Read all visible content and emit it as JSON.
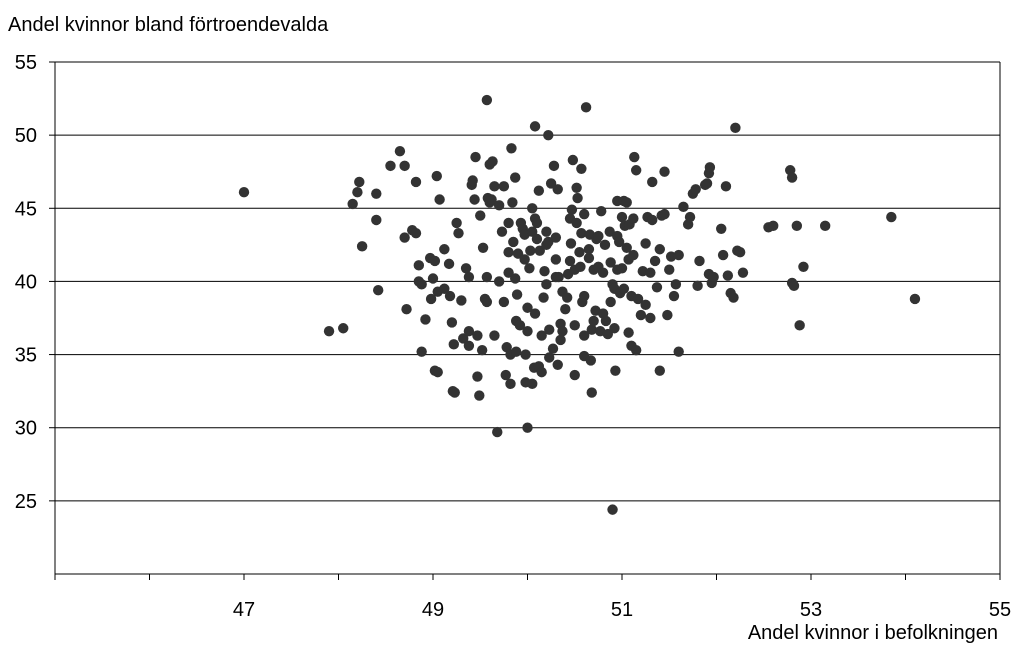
{
  "chart_data": {
    "type": "scatter",
    "title": "Andel kvinnor bland förtroendevalda",
    "xlabel": "Andel kvinnor i befolkningen",
    "ylabel": "",
    "xlim": [
      45,
      55
    ],
    "ylim": [
      20,
      55
    ],
    "xticks": [
      47,
      49,
      51,
      53,
      55
    ],
    "yticks": [
      25,
      30,
      35,
      40,
      45,
      50,
      55
    ],
    "grid": "horizontal",
    "marker_color": "#333333",
    "points": [
      [
        47.0,
        46.1
      ],
      [
        47.9,
        36.6
      ],
      [
        48.05,
        36.8
      ],
      [
        48.15,
        45.3
      ],
      [
        48.2,
        46.1
      ],
      [
        48.22,
        46.8
      ],
      [
        48.25,
        42.4
      ],
      [
        48.4,
        46.0
      ],
      [
        48.4,
        44.2
      ],
      [
        48.42,
        39.4
      ],
      [
        48.55,
        47.9
      ],
      [
        48.65,
        48.9
      ],
      [
        48.7,
        47.9
      ],
      [
        48.7,
        43.0
      ],
      [
        48.72,
        38.1
      ],
      [
        48.78,
        43.5
      ],
      [
        48.82,
        46.8
      ],
      [
        48.82,
        43.3
      ],
      [
        48.85,
        41.1
      ],
      [
        48.85,
        40.0
      ],
      [
        48.88,
        39.8
      ],
      [
        48.88,
        35.2
      ],
      [
        48.92,
        37.4
      ],
      [
        48.97,
        41.6
      ],
      [
        48.98,
        38.8
      ],
      [
        49.0,
        40.2
      ],
      [
        49.02,
        41.4
      ],
      [
        49.02,
        33.9
      ],
      [
        49.04,
        47.2
      ],
      [
        49.05,
        39.3
      ],
      [
        49.05,
        33.8
      ],
      [
        49.07,
        45.6
      ],
      [
        49.12,
        42.2
      ],
      [
        49.12,
        39.5
      ],
      [
        49.17,
        41.2
      ],
      [
        49.18,
        39.0
      ],
      [
        49.2,
        37.2
      ],
      [
        49.21,
        32.5
      ],
      [
        49.23,
        32.4
      ],
      [
        49.22,
        35.7
      ],
      [
        49.25,
        44.0
      ],
      [
        49.27,
        43.3
      ],
      [
        49.3,
        38.7
      ],
      [
        49.32,
        36.1
      ],
      [
        49.35,
        40.9
      ],
      [
        49.38,
        40.3
      ],
      [
        49.38,
        36.6
      ],
      [
        49.38,
        35.6
      ],
      [
        49.41,
        46.6
      ],
      [
        49.42,
        46.9
      ],
      [
        49.44,
        45.6
      ],
      [
        49.45,
        48.5
      ],
      [
        49.47,
        36.3
      ],
      [
        49.47,
        33.5
      ],
      [
        49.49,
        32.2
      ],
      [
        49.5,
        44.5
      ],
      [
        49.52,
        35.3
      ],
      [
        49.53,
        42.3
      ],
      [
        49.55,
        38.8
      ],
      [
        49.57,
        38.6
      ],
      [
        49.57,
        40.3
      ],
      [
        49.57,
        52.4
      ],
      [
        49.58,
        45.7
      ],
      [
        49.6,
        45.4
      ],
      [
        49.6,
        48.0
      ],
      [
        49.62,
        45.6
      ],
      [
        49.63,
        48.2
      ],
      [
        49.65,
        36.3
      ],
      [
        49.65,
        46.5
      ],
      [
        49.68,
        29.7
      ],
      [
        49.7,
        40.0
      ],
      [
        49.7,
        45.2
      ],
      [
        49.73,
        43.4
      ],
      [
        49.75,
        46.5
      ],
      [
        49.75,
        38.6
      ],
      [
        49.77,
        33.6
      ],
      [
        49.78,
        35.5
      ],
      [
        49.8,
        44.0
      ],
      [
        49.8,
        42.0
      ],
      [
        49.8,
        40.6
      ],
      [
        49.82,
        35.0
      ],
      [
        49.82,
        33.0
      ],
      [
        49.83,
        49.1
      ],
      [
        49.84,
        45.4
      ],
      [
        49.85,
        42.7
      ],
      [
        49.87,
        47.1
      ],
      [
        49.87,
        40.2
      ],
      [
        49.88,
        37.3
      ],
      [
        49.88,
        35.2
      ],
      [
        49.89,
        39.1
      ],
      [
        49.9,
        41.9
      ],
      [
        49.92,
        37.0
      ],
      [
        49.93,
        44.0
      ],
      [
        49.95,
        43.6
      ],
      [
        49.97,
        43.2
      ],
      [
        49.97,
        41.5
      ],
      [
        49.98,
        35.0
      ],
      [
        49.98,
        33.1
      ],
      [
        50.0,
        30.0
      ],
      [
        50.0,
        36.6
      ],
      [
        50.0,
        38.2
      ],
      [
        50.02,
        40.9
      ],
      [
        50.03,
        42.1
      ],
      [
        50.05,
        45.0
      ],
      [
        50.05,
        43.4
      ],
      [
        50.05,
        33.0
      ],
      [
        50.07,
        34.1
      ],
      [
        50.08,
        37.8
      ],
      [
        50.08,
        44.3
      ],
      [
        50.08,
        50.6
      ],
      [
        50.1,
        42.9
      ],
      [
        50.1,
        44.0
      ],
      [
        50.12,
        34.2
      ],
      [
        50.12,
        46.2
      ],
      [
        50.13,
        42.1
      ],
      [
        50.15,
        33.8
      ],
      [
        50.15,
        36.3
      ],
      [
        50.17,
        38.9
      ],
      [
        50.18,
        40.7
      ],
      [
        50.2,
        43.4
      ],
      [
        50.2,
        42.5
      ],
      [
        50.2,
        39.8
      ],
      [
        50.22,
        42.7
      ],
      [
        50.22,
        50.0
      ],
      [
        50.23,
        36.7
      ],
      [
        50.23,
        34.8
      ],
      [
        50.25,
        46.7
      ],
      [
        50.27,
        35.4
      ],
      [
        50.28,
        47.9
      ],
      [
        50.3,
        43.0
      ],
      [
        50.3,
        41.5
      ],
      [
        50.3,
        40.3
      ],
      [
        50.32,
        34.3
      ],
      [
        50.32,
        46.3
      ],
      [
        50.33,
        40.3
      ],
      [
        50.35,
        36.0
      ],
      [
        50.35,
        37.1
      ],
      [
        50.37,
        36.6
      ],
      [
        50.37,
        39.3
      ],
      [
        50.4,
        38.1
      ],
      [
        50.42,
        38.9
      ],
      [
        50.43,
        40.5
      ],
      [
        50.45,
        41.4
      ],
      [
        50.45,
        44.3
      ],
      [
        50.46,
        42.6
      ],
      [
        50.47,
        44.9
      ],
      [
        50.48,
        48.3
      ],
      [
        50.5,
        37.0
      ],
      [
        50.5,
        33.6
      ],
      [
        50.5,
        40.8
      ],
      [
        50.52,
        46.4
      ],
      [
        50.52,
        44.0
      ],
      [
        50.53,
        45.7
      ],
      [
        50.55,
        42.0
      ],
      [
        50.56,
        41.0
      ],
      [
        50.57,
        43.3
      ],
      [
        50.57,
        47.7
      ],
      [
        50.58,
        38.6
      ],
      [
        50.6,
        36.3
      ],
      [
        50.6,
        34.9
      ],
      [
        50.6,
        39.0
      ],
      [
        50.6,
        44.6
      ],
      [
        50.62,
        51.9
      ],
      [
        50.65,
        41.6
      ],
      [
        50.65,
        42.2
      ],
      [
        50.66,
        43.2
      ],
      [
        50.67,
        34.6
      ],
      [
        50.68,
        32.4
      ],
      [
        50.68,
        36.7
      ],
      [
        50.7,
        40.8
      ],
      [
        50.7,
        37.3
      ],
      [
        50.72,
        38.0
      ],
      [
        50.73,
        42.9
      ],
      [
        50.75,
        43.1
      ],
      [
        50.75,
        41.0
      ],
      [
        50.77,
        36.6
      ],
      [
        50.78,
        44.8
      ],
      [
        50.8,
        37.8
      ],
      [
        50.8,
        40.6
      ],
      [
        50.82,
        42.5
      ],
      [
        50.83,
        37.3
      ],
      [
        50.85,
        36.4
      ],
      [
        50.87,
        43.4
      ],
      [
        50.88,
        38.6
      ],
      [
        50.88,
        41.3
      ],
      [
        50.9,
        39.8
      ],
      [
        50.92,
        36.8
      ],
      [
        50.92,
        39.5
      ],
      [
        50.93,
        33.9
      ],
      [
        50.95,
        45.5
      ],
      [
        50.95,
        40.8
      ],
      [
        50.95,
        43.1
      ],
      [
        50.97,
        42.7
      ],
      [
        50.98,
        39.2
      ],
      [
        51.0,
        44.4
      ],
      [
        51.0,
        40.9
      ],
      [
        51.02,
        45.5
      ],
      [
        51.02,
        39.5
      ],
      [
        51.03,
        43.8
      ],
      [
        51.05,
        42.3
      ],
      [
        51.05,
        45.4
      ],
      [
        51.07,
        41.5
      ],
      [
        51.07,
        36.5
      ],
      [
        51.08,
        43.9
      ],
      [
        51.1,
        35.6
      ],
      [
        51.1,
        39.0
      ],
      [
        51.12,
        41.8
      ],
      [
        51.12,
        44.3
      ],
      [
        51.13,
        48.5
      ],
      [
        51.15,
        47.6
      ],
      [
        51.15,
        35.3
      ],
      [
        51.17,
        38.8
      ],
      [
        51.2,
        37.7
      ],
      [
        51.22,
        40.7
      ],
      [
        51.25,
        42.6
      ],
      [
        51.25,
        38.4
      ],
      [
        51.27,
        44.4
      ],
      [
        51.3,
        40.6
      ],
      [
        51.3,
        37.5
      ],
      [
        51.32,
        46.8
      ],
      [
        51.32,
        44.2
      ],
      [
        51.35,
        41.4
      ],
      [
        51.37,
        39.6
      ],
      [
        51.4,
        42.2
      ],
      [
        51.4,
        33.9
      ],
      [
        51.42,
        44.5
      ],
      [
        51.45,
        47.5
      ],
      [
        51.45,
        44.6
      ],
      [
        51.48,
        37.7
      ],
      [
        51.5,
        40.8
      ],
      [
        51.52,
        41.7
      ],
      [
        51.55,
        39.0
      ],
      [
        51.57,
        39.8
      ],
      [
        51.6,
        41.8
      ],
      [
        51.6,
        35.2
      ],
      [
        51.65,
        45.1
      ],
      [
        51.7,
        43.9
      ],
      [
        51.72,
        44.4
      ],
      [
        51.75,
        46.0
      ],
      [
        51.78,
        46.3
      ],
      [
        51.8,
        39.7
      ],
      [
        51.82,
        41.4
      ],
      [
        51.88,
        46.6
      ],
      [
        51.9,
        46.7
      ],
      [
        51.92,
        47.4
      ],
      [
        51.92,
        40.5
      ],
      [
        51.93,
        47.8
      ],
      [
        51.95,
        39.9
      ],
      [
        51.97,
        40.3
      ],
      [
        52.05,
        43.6
      ],
      [
        52.07,
        41.8
      ],
      [
        52.1,
        46.5
      ],
      [
        52.12,
        40.4
      ],
      [
        52.15,
        39.2
      ],
      [
        52.18,
        38.9
      ],
      [
        52.2,
        50.5
      ],
      [
        52.22,
        42.1
      ],
      [
        52.25,
        42.0
      ],
      [
        52.28,
        40.6
      ],
      [
        52.55,
        43.7
      ],
      [
        52.6,
        43.8
      ],
      [
        52.78,
        47.6
      ],
      [
        52.8,
        47.1
      ],
      [
        52.8,
        39.9
      ],
      [
        52.82,
        39.7
      ],
      [
        52.85,
        43.8
      ],
      [
        52.88,
        37.0
      ],
      [
        52.92,
        41.0
      ],
      [
        53.15,
        43.8
      ],
      [
        53.85,
        44.4
      ],
      [
        54.1,
        38.8
      ],
      [
        50.9,
        24.4
      ]
    ]
  }
}
